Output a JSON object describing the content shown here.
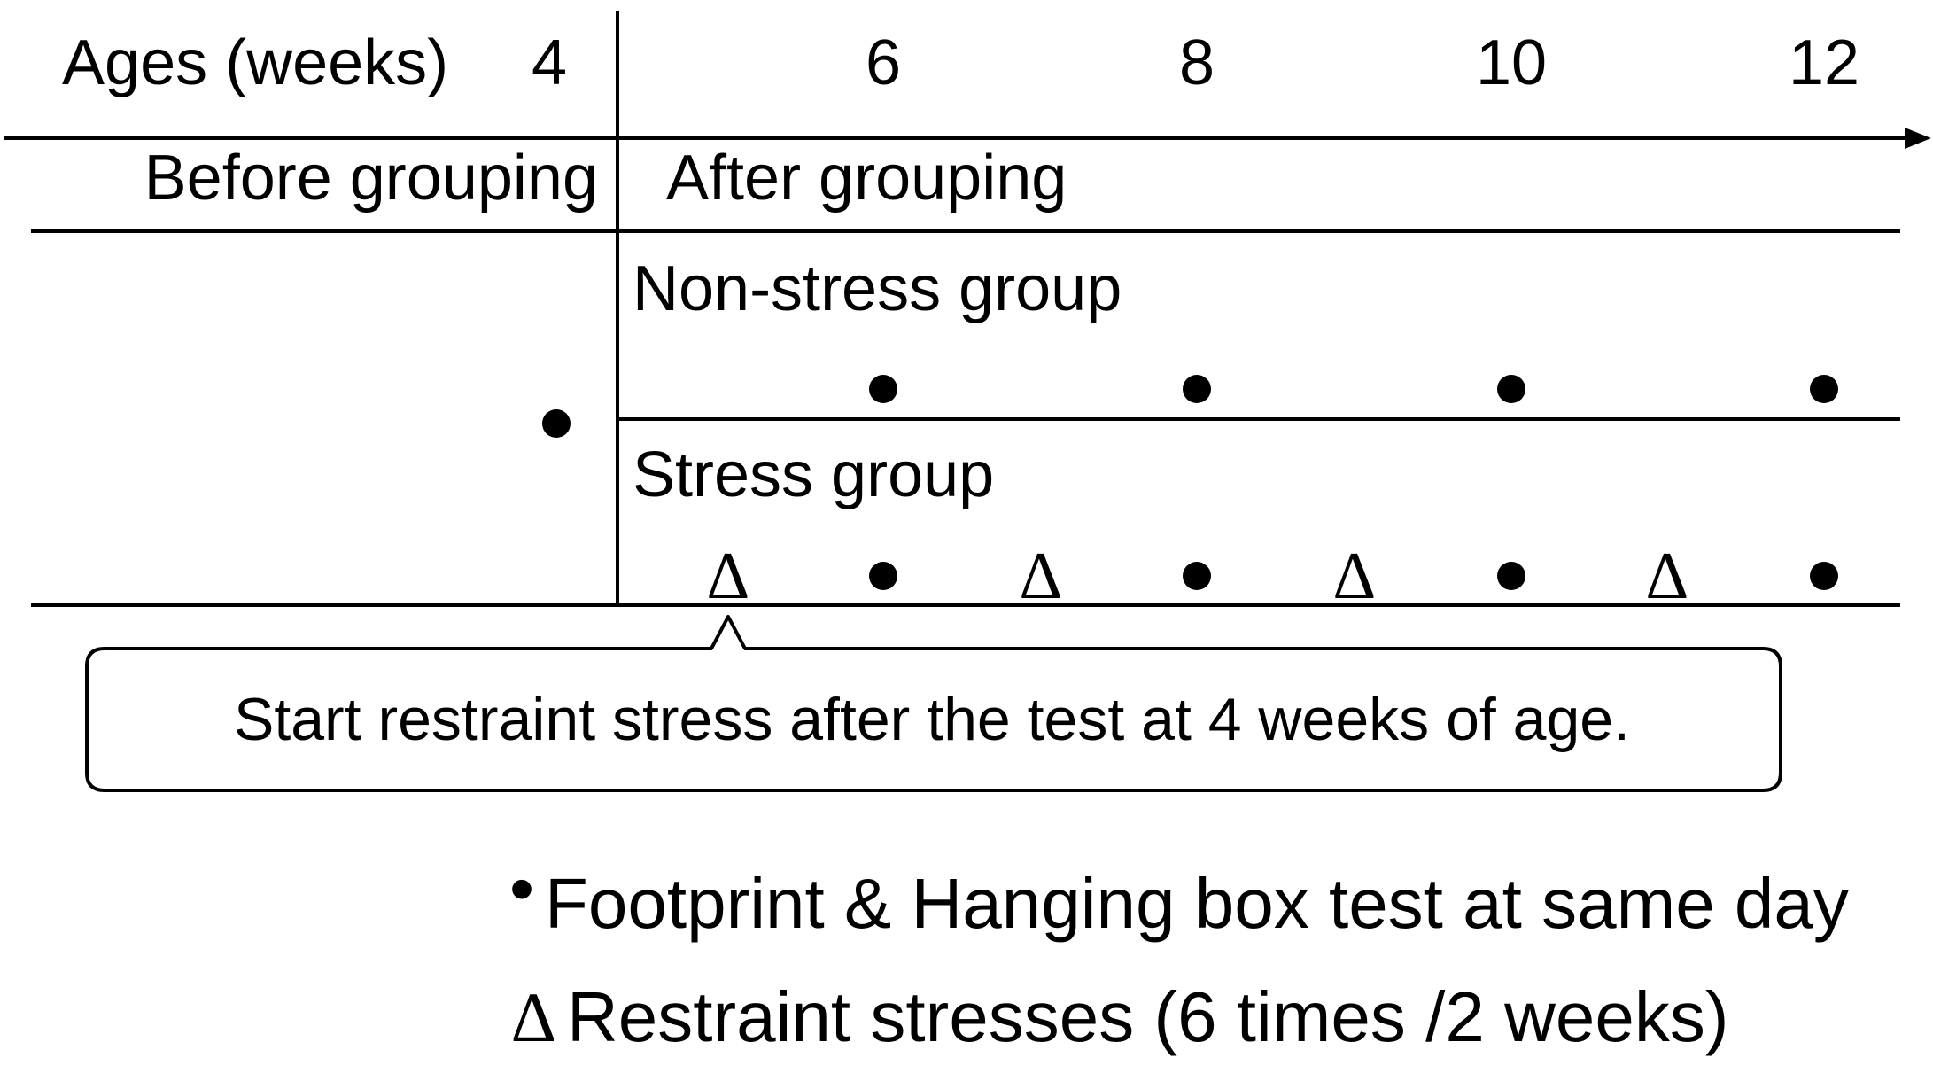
{
  "ages_label": "Ages (weeks)",
  "ages": [
    "4",
    "6",
    "8",
    "10",
    "12"
  ],
  "phases": {
    "before": "Before grouping",
    "after": "After grouping"
  },
  "groups": {
    "non_stress": "Non-stress group",
    "stress": "Stress group"
  },
  "callout": "Start restraint stress after the test at 4 weeks of age.",
  "legend": {
    "dot_symbol": "•",
    "dot_text": "Footprint & Hanging box test at same day",
    "triangle_symbol": "∆",
    "triangle_text": "Restraint stresses (6 times /2 weeks)"
  },
  "timeline": {
    "baseline_test_week": 4,
    "non_stress_test_weeks": [
      6,
      8,
      10,
      12
    ],
    "stress_test_weeks": [
      6,
      8,
      10,
      12
    ],
    "stress_restraint_weeks": [
      5,
      7,
      9,
      11
    ]
  },
  "colors": {
    "ink": "#000000",
    "background": "#ffffff"
  }
}
